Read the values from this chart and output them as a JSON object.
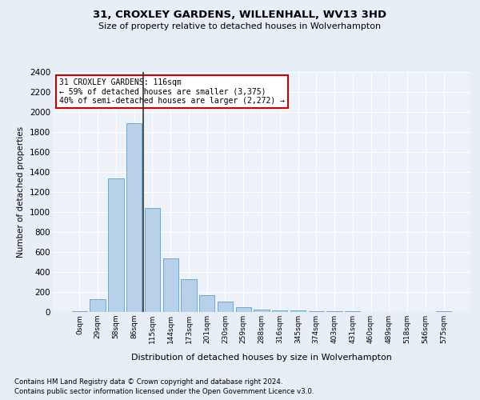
{
  "title": "31, CROXLEY GARDENS, WILLENHALL, WV13 3HD",
  "subtitle": "Size of property relative to detached houses in Wolverhampton",
  "xlabel": "Distribution of detached houses by size in Wolverhampton",
  "ylabel": "Number of detached properties",
  "footnote1": "Contains HM Land Registry data © Crown copyright and database right 2024.",
  "footnote2": "Contains public sector information licensed under the Open Government Licence v3.0.",
  "bar_color": "#b8d0e8",
  "bar_edge_color": "#6aaad4",
  "background_color": "#e8eef5",
  "plot_bg_color": "#edf2f8",
  "grid_color": "#ffffff",
  "marker_line_color": "#333333",
  "annotation_box_color": "#cc0000",
  "categories": [
    "0sqm",
    "29sqm",
    "58sqm",
    "86sqm",
    "115sqm",
    "144sqm",
    "173sqm",
    "201sqm",
    "230sqm",
    "259sqm",
    "288sqm",
    "316sqm",
    "345sqm",
    "374sqm",
    "403sqm",
    "431sqm",
    "460sqm",
    "489sqm",
    "518sqm",
    "546sqm",
    "575sqm"
  ],
  "values": [
    10,
    125,
    1340,
    1890,
    1040,
    540,
    330,
    165,
    105,
    50,
    25,
    20,
    15,
    10,
    10,
    10,
    0,
    0,
    0,
    0,
    10
  ],
  "marker_index": 4,
  "annotation_line1": "31 CROXLEY GARDENS: 116sqm",
  "annotation_line2": "← 59% of detached houses are smaller (3,375)",
  "annotation_line3": "40% of semi-detached houses are larger (2,272) →",
  "ylim": [
    0,
    2400
  ],
  "yticks": [
    0,
    200,
    400,
    600,
    800,
    1000,
    1200,
    1400,
    1600,
    1800,
    2000,
    2200,
    2400
  ]
}
